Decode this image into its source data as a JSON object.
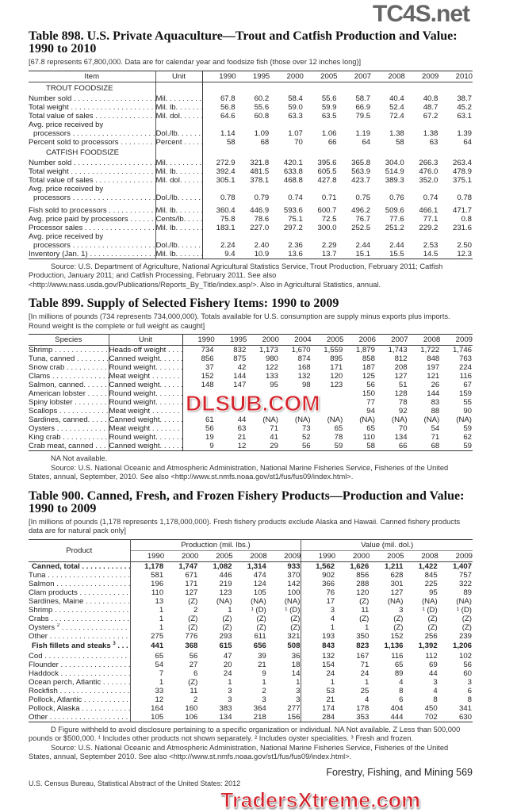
{
  "watermarks": {
    "top": "TC4S.net",
    "middle": "DLSUB.COM",
    "bottom": "TradersXtreme.com"
  },
  "t898": {
    "title": "Table 898. U.S. Private Aquaculture—Trout and Catfish Production and Value: 1990 to 2010",
    "note": "[67.8 represents 67,800,000. Data are for calendar year and foodsize fish (those over 12 inches long)]",
    "columns": [
      "Item",
      "Unit",
      "1990",
      "1995",
      "2000",
      "2005",
      "2007",
      "2008",
      "2009",
      "2010"
    ],
    "sections": [
      {
        "label": "TROUT FOODSIZE",
        "rows": [
          {
            "label": "Number sold",
            "unit": "Mil.",
            "values": [
              "67.8",
              "60.2",
              "58.4",
              "55.6",
              "58.7",
              "40.4",
              "40.8",
              "38.7"
            ]
          },
          {
            "label": "Total weight",
            "unit": "Mil. lb.",
            "values": [
              "56.8",
              "55.6",
              "59.0",
              "59.9",
              "66.9",
              "52.4",
              "48.7",
              "45.2"
            ]
          },
          {
            "label": "Total value of sales",
            "unit": "Mil. dol.",
            "values": [
              "64.6",
              "60.8",
              "63.3",
              "63.5",
              "79.5",
              "72.4",
              "67.2",
              "63.1"
            ]
          },
          {
            "label_line1": "Avg. price received by",
            "label": "processors",
            "unit": "Dol./lb.",
            "values": [
              "1.14",
              "1.09",
              "1.07",
              "1.06",
              "1.19",
              "1.38",
              "1.38",
              "1.39"
            ]
          },
          {
            "label": "Percent sold to processors",
            "unit": "Percent",
            "values": [
              "58",
              "68",
              "70",
              "66",
              "64",
              "58",
              "63",
              "64"
            ]
          }
        ]
      },
      {
        "label": "CATFISH FOODSIZE",
        "rows": [
          {
            "label": "Number sold",
            "unit": "Mil.",
            "values": [
              "272.9",
              "321.8",
              "420.1",
              "395.6",
              "365.8",
              "304.0",
              "266.3",
              "263.4"
            ]
          },
          {
            "label": "Total weight",
            "unit": "Mil. lb.",
            "values": [
              "392.4",
              "481.5",
              "633.8",
              "605.5",
              "563.9",
              "514.9",
              "476.0",
              "478.9"
            ]
          },
          {
            "label": "Total value of sales",
            "unit": "Mil. dol.",
            "values": [
              "305.1",
              "378.1",
              "468.8",
              "427.8",
              "423.7",
              "389.3",
              "352.0",
              "375.1"
            ]
          },
          {
            "label_line1": "Avg. price received by",
            "label": "processors",
            "unit": "Dol./lb.",
            "values": [
              "0.78",
              "0.79",
              "0.74",
              "0.71",
              "0.75",
              "0.76",
              "0.74",
              "0.78"
            ]
          }
        ]
      },
      {
        "label": "",
        "rows": [
          {
            "label": "Fish sold to processors",
            "unit": "Mil. lb.",
            "values": [
              "360.4",
              "446.9",
              "593.6",
              "600.7",
              "496.2",
              "509.6",
              "466.1",
              "471.7"
            ]
          },
          {
            "label": "Avg. price paid by processors",
            "unit": "Cents/lb.",
            "values": [
              "75.8",
              "78.6",
              "75.1",
              "72.5",
              "76.7",
              "77.6",
              "77.1",
              "0.8"
            ]
          },
          {
            "label": "Processor sales",
            "unit": "Mil. lb.",
            "values": [
              "183.1",
              "227.0",
              "297.2",
              "300.0",
              "252.5",
              "251.2",
              "229.2",
              "231.6"
            ]
          },
          {
            "label_line1": "Avg. price received by",
            "label": "processors",
            "unit": "Dol./lb.",
            "values": [
              "2.24",
              "2.40",
              "2.36",
              "2.29",
              "2.44",
              "2.44",
              "2.53",
              "2.50"
            ]
          },
          {
            "label": "Inventory (Jan. 1)",
            "unit": "Mil. lb.",
            "values": [
              "9.4",
              "10.9",
              "13.6",
              "13.7",
              "15.1",
              "15.5",
              "14.5",
              "12.3"
            ]
          }
        ]
      }
    ],
    "source": "Source: U.S. Department of Agriculture, National Agricultural Statistics Service, Trout Production, February 2011; Catfish Production, January 2011; and Catfish Processing, February 2011. See also <http://www.nass.usda.gov/Publications/Reports_By_Title/index.asp/>. Also in Agricultural Statistics, annual."
  },
  "t899": {
    "title": "Table 899. Supply of Selected Fishery Items: 1990 to 2009",
    "note": "[In millions of pounds (734 represents 734,000,000). Totals available for U.S. consumption are supply minus exports plus imports. Round weight is the complete or full weight as caught]",
    "columns": [
      "Species",
      "Unit",
      "1990",
      "1995",
      "2000",
      "2004",
      "2005",
      "2006",
      "2007",
      "2008",
      "2009"
    ],
    "rows": [
      {
        "label": "Shrimp",
        "unit": "Heads-off weight",
        "values": [
          "734",
          "832",
          "1,173",
          "1,670",
          "1,559",
          "1,879",
          "1,743",
          "1,722",
          "1,746"
        ]
      },
      {
        "label": "Tuna, canned",
        "unit": "Canned weight.",
        "values": [
          "856",
          "875",
          "980",
          "874",
          "895",
          "858",
          "812",
          "848",
          "763"
        ]
      },
      {
        "label": "Snow crab",
        "unit": "Round weight.",
        "values": [
          "37",
          "42",
          "122",
          "168",
          "171",
          "187",
          "208",
          "197",
          "224"
        ]
      },
      {
        "label": "Clams",
        "unit": "Meat weight",
        "values": [
          "152",
          "144",
          "133",
          "132",
          "120",
          "125",
          "127",
          "121",
          "116"
        ]
      },
      {
        "label": "Salmon, canned.",
        "unit": "Canned weight.",
        "values": [
          "148",
          "147",
          "95",
          "98",
          "123",
          "56",
          "51",
          "26",
          "67"
        ]
      },
      {
        "label": "American lobster",
        "unit": "Round weight.",
        "values": [
          "",
          "",
          "",
          "",
          "",
          "150",
          "128",
          "144",
          "159"
        ]
      },
      {
        "label": "Spiny lobster",
        "unit": "Round weight.",
        "values": [
          "",
          "",
          "",
          "",
          "",
          "77",
          "78",
          "83",
          "55"
        ]
      },
      {
        "label": "Scallops",
        "unit": "Meat weight",
        "values": [
          "",
          "",
          "",
          "",
          "",
          "94",
          "92",
          "88",
          "90"
        ]
      },
      {
        "label": "Sardines, canned.",
        "unit": "Canned weight.",
        "values": [
          "61",
          "44",
          "(NA)",
          "(NA)",
          "(NA)",
          "(NA)",
          "(NA)",
          "(NA)",
          "(NA)"
        ]
      },
      {
        "label": "Oysters",
        "unit": "Meat weight",
        "values": [
          "56",
          "63",
          "71",
          "73",
          "65",
          "65",
          "70",
          "54",
          "59"
        ]
      },
      {
        "label": "King crab",
        "unit": "Round weight.",
        "values": [
          "19",
          "21",
          "41",
          "52",
          "78",
          "110",
          "134",
          "71",
          "62"
        ]
      },
      {
        "label": "Crab meat, canned",
        "unit": "Canned weight.",
        "values": [
          "9",
          "12",
          "29",
          "56",
          "59",
          "58",
          "66",
          "68",
          "59"
        ]
      }
    ],
    "na_note": "NA Not available.",
    "source": "Source: U.S. National Oceanic and Atmospheric Administration, National Marine Fisheries Service, Fisheries of the United States, annual, September, 2010. See also <http://www.st.nmfs.noaa.gov/st1/fus/fus09/index.html>."
  },
  "t900": {
    "title": "Table 900. Canned, Fresh, and Frozen Fishery Products—Production and Value: 1990 to 2009",
    "note": "[In millions of pounds (1,178 represents 1,178,000,000). Fresh fishery products exclude Alaska and Hawaii. Canned fishery products data are for natural pack only]",
    "product_header": "Product",
    "group_headers": [
      "Production (mil. lbs.)",
      "Value (mil. dol.)"
    ],
    "years": [
      "1990",
      "2000",
      "2005",
      "2008",
      "2009",
      "1990",
      "2000",
      "2005",
      "2008",
      "2009"
    ],
    "sections": [
      {
        "rows": [
          {
            "label": "Canned, total",
            "bold": true,
            "values": [
              "1,178",
              "1,747",
              "1,082",
              "1,314",
              "933",
              "1,562",
              "1,626",
              "1,211",
              "1,422",
              "1,407"
            ]
          },
          {
            "label": "Tuna",
            "values": [
              "581",
              "671",
              "446",
              "474",
              "370",
              "902",
              "856",
              "628",
              "845",
              "757"
            ]
          },
          {
            "label": "Salmon",
            "values": [
              "196",
              "171",
              "219",
              "124",
              "142",
              "366",
              "288",
              "301",
              "225",
              "322"
            ]
          },
          {
            "label": "Clam products",
            "values": [
              "110",
              "127",
              "123",
              "105",
              "100",
              "76",
              "120",
              "127",
              "95",
              "89"
            ]
          },
          {
            "label": "Sardines, Maine",
            "values": [
              "13",
              "(Z)",
              "(NA)",
              "(NA)",
              "(NA)",
              "17",
              "(Z)",
              "(NA)",
              "(NA)",
              "(NA)"
            ]
          },
          {
            "label": "Shrimp",
            "values": [
              "1",
              "2",
              "1",
              "¹ (D)",
              "¹ (D)",
              "3",
              "11",
              "3",
              "¹ (D)",
              "¹ (D)"
            ]
          },
          {
            "label": "Crabs",
            "values": [
              "1",
              "(Z)",
              "(Z)",
              "(Z)",
              "(Z)",
              "4",
              "(Z)",
              "(Z)",
              "(Z)",
              "(Z)"
            ]
          },
          {
            "label": "Oysters",
            "sup": "2",
            "values": [
              "1",
              "(Z)",
              "(Z)",
              "(Z)",
              "(Z)",
              "1",
              "1",
              "(Z)",
              "(Z)",
              "(Z)"
            ]
          },
          {
            "label": "Other",
            "values": [
              "275",
              "776",
              "293",
              "611",
              "321",
              "193",
              "350",
              "152",
              "256",
              "239"
            ]
          }
        ]
      },
      {
        "rows": [
          {
            "label": "Fish fillets and steaks",
            "sup": "3",
            "bold": true,
            "values": [
              "441",
              "368",
              "615",
              "656",
              "508",
              "843",
              "823",
              "1,136",
              "1,392",
              "1,206"
            ]
          },
          {
            "label": "Cod",
            "values": [
              "65",
              "56",
              "47",
              "39",
              "36",
              "132",
              "167",
              "116",
              "112",
              "102"
            ]
          },
          {
            "label": "Flounder",
            "values": [
              "54",
              "27",
              "20",
              "21",
              "18",
              "154",
              "71",
              "65",
              "69",
              "56"
            ]
          },
          {
            "label": "Haddock",
            "values": [
              "7",
              "6",
              "24",
              "9",
              "14",
              "24",
              "24",
              "89",
              "44",
              "60"
            ]
          },
          {
            "label": "Ocean perch, Atlantic",
            "values": [
              "1",
              "(Z)",
              "1",
              "1",
              "1",
              "1",
              "1",
              "4",
              "3",
              "3"
            ]
          },
          {
            "label": "Rockfish",
            "values": [
              "33",
              "11",
              "3",
              "2",
              "3",
              "53",
              "25",
              "8",
              "4",
              "6"
            ]
          },
          {
            "label": "Pollock, Atlantic",
            "values": [
              "12",
              "2",
              "3",
              "3",
              "3",
              "21",
              "4",
              "6",
              "8",
              "8"
            ]
          },
          {
            "label": "Pollock, Alaska",
            "values": [
              "164",
              "160",
              "383",
              "364",
              "277",
              "174",
              "178",
              "404",
              "450",
              "341"
            ]
          },
          {
            "label": "Other",
            "values": [
              "105",
              "106",
              "134",
              "218",
              "156",
              "284",
              "353",
              "444",
              "702",
              "630"
            ]
          }
        ]
      }
    ],
    "footnotes": "D Figure withheld to avoid disclosure pertaining to a specific organization or individual. NA Not available. Z Less than 500,000 pounds or $500,000. ¹ Includes other products not shown separately. ² Includes oyster specialities. ³ Fresh and frozen.",
    "source": "Source: U.S. National Oceanic and Atmospheric Administration, National Marine Fisheries Service, Fisheries of the United States, annual, September 2010. See also <http://www.st.nmfs.noaa.gov/st1/fus/fus09/index.html>."
  },
  "footer": {
    "left": "U.S. Census Bureau, Statistical Abstract of the United States: 2012",
    "right": "Forestry, Fishing, and Mining  569"
  }
}
